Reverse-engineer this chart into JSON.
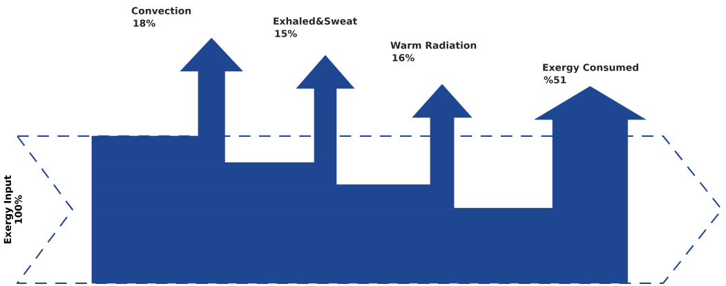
{
  "chart_data": {
    "type": "other",
    "color": "#1f4690",
    "categories": [
      "Exergy Input",
      "Convection",
      "Exhaled&Sweat",
      "Warm Radiation",
      "Exergy Consumed"
    ],
    "values": [
      100,
      18,
      15,
      16,
      51
    ],
    "value_labels": [
      "100%",
      "18%",
      "15%",
      "16%",
      "%51"
    ]
  }
}
